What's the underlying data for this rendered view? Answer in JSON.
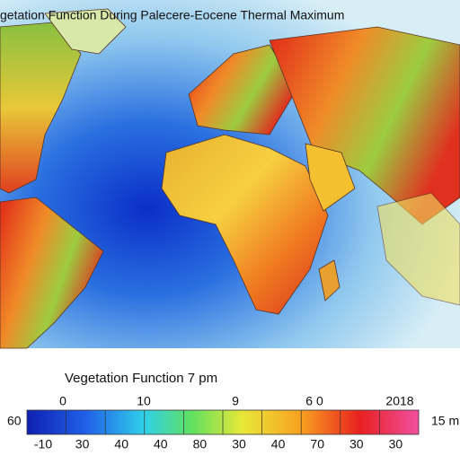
{
  "header": {
    "title": "getation Function During Palecere-Eocene Thermal Maximum"
  },
  "legend": {
    "label": "Vegetation Function 7 pm",
    "top_labels": [
      "0",
      "10",
      "9",
      "6 0",
      "2018"
    ],
    "bottom_labels": [
      "-10",
      "30",
      "40",
      "40",
      "80",
      "30",
      "40",
      "70",
      "30",
      "30"
    ],
    "left_label": "60",
    "right_label": "15 m"
  }
}
